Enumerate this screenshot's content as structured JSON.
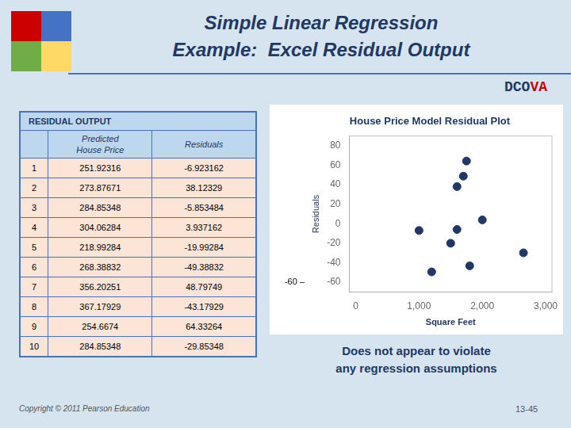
{
  "chart_data": {
    "type": "scatter",
    "title": "House Price Model Residual Plot",
    "x_label": "Square Feet",
    "y_label": "Residuals",
    "x": [
      1000,
      1600,
      1600,
      2000,
      1500,
      1200,
      1700,
      1800,
      1750,
      2650
    ],
    "values": [
      -6.923162,
      38.12329,
      -5.853484,
      3.937162,
      -19.99284,
      -49.38832,
      48.79749,
      -43.17929,
      64.33264,
      -29.85348
    ],
    "color": "#1F3864",
    "xlim": [
      -100,
      3100
    ],
    "xticks": [
      0,
      1000,
      2000,
      3000
    ],
    "ylim": [
      -70,
      90
    ],
    "yticks": [
      -60,
      -40,
      -20,
      0,
      20,
      40,
      60,
      80
    ],
    "grid": false,
    "annotations": [
      {
        "text": "-60 –",
        "y": -60
      }
    ]
  },
  "slide": {
    "title": [
      "Simple Linear Regression",
      "Example:  Excel Residual Output"
    ],
    "badge": [
      "DCO",
      "VA"
    ],
    "table": {
      "title": "RESIDUAL OUTPUT",
      "columns": [
        "Predicted\nHouse Price",
        "Residuals"
      ],
      "rows": [
        [
          1,
          "251.92316",
          "-6.923162"
        ],
        [
          2,
          "273.87671",
          "38.12329"
        ],
        [
          3,
          "284.85348",
          "-5.853484"
        ],
        [
          4,
          "304.06284",
          "3.937162"
        ],
        [
          5,
          "218.99284",
          "-19.99284"
        ],
        [
          6,
          "268.38832",
          "-49.38832"
        ],
        [
          7,
          "356.20251",
          "48.79749"
        ],
        [
          8,
          "367.17929",
          "-43.17929"
        ],
        [
          9,
          "254.6674",
          "64.33264"
        ],
        [
          10,
          "284.85348",
          "-29.85348"
        ]
      ]
    },
    "footer": "Does not appear to violate\nany regression assumptions",
    "copyright": "Copyright © 2011 Pearson Education",
    "slide_number": "13-45"
  }
}
